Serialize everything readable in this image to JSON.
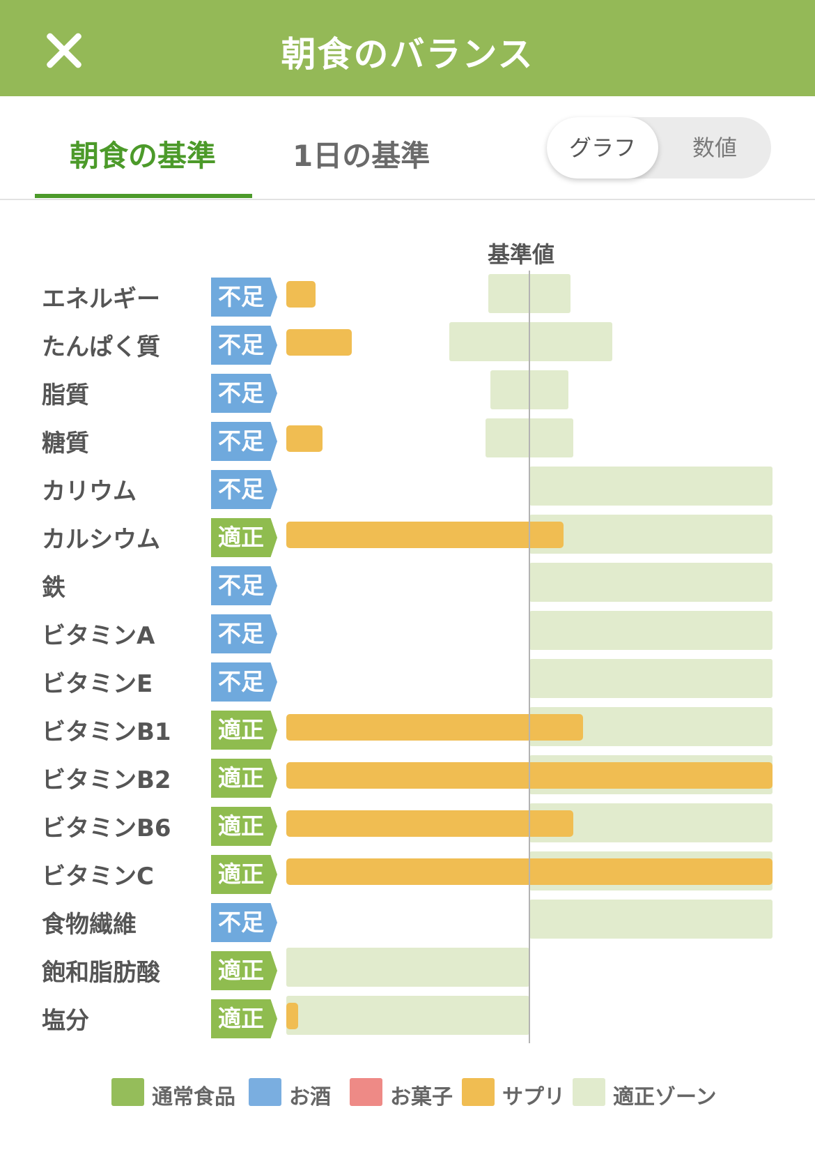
{
  "header": {
    "title": "朝食のバランス",
    "close_icon": "close-icon"
  },
  "tabs": [
    {
      "label": "朝食の基準",
      "active": true
    },
    {
      "label": "1日の基準",
      "active": false
    }
  ],
  "view_toggle": {
    "options": [
      "グラフ",
      "数値"
    ],
    "selected": "グラフ"
  },
  "chart_data": {
    "type": "bar",
    "reference_label": "基準値",
    "orientation": "horizontal",
    "colors": {
      "supplement": "#f0bd52",
      "zone": "#e1ebcd",
      "low_badge": "#6fa9dd",
      "ok_badge": "#8fbc4f"
    },
    "rows": [
      {
        "label": "エネルギー",
        "status": "不足",
        "value": 0.12,
        "zone": [
          0.83,
          1.17
        ]
      },
      {
        "label": "たんぱく質",
        "status": "不足",
        "value": 0.27,
        "zone": [
          0.67,
          1.34
        ]
      },
      {
        "label": "脂質",
        "status": "不足",
        "value": 0,
        "zone": [
          0.84,
          1.16
        ]
      },
      {
        "label": "糖質",
        "status": "不足",
        "value": 0.15,
        "zone": [
          0.82,
          1.18
        ]
      },
      {
        "label": "カリウム",
        "status": "不足",
        "value": 0,
        "zone": [
          1.0,
          2.0
        ]
      },
      {
        "label": "カルシウム",
        "status": "適正",
        "value": 1.14,
        "zone": [
          1.0,
          2.0
        ]
      },
      {
        "label": "鉄",
        "status": "不足",
        "value": 0,
        "zone": [
          1.0,
          2.0
        ]
      },
      {
        "label": "ビタミンA",
        "status": "不足",
        "value": 0,
        "zone": [
          1.0,
          2.0
        ]
      },
      {
        "label": "ビタミンE",
        "status": "不足",
        "value": 0,
        "zone": [
          1.0,
          2.0
        ]
      },
      {
        "label": "ビタミンB1",
        "status": "適正",
        "value": 1.22,
        "zone": [
          1.0,
          2.0
        ]
      },
      {
        "label": "ビタミンB2",
        "status": "適正",
        "value": 2.0,
        "zone": [
          1.0,
          2.0
        ]
      },
      {
        "label": "ビタミンB6",
        "status": "適正",
        "value": 1.18,
        "zone": [
          1.0,
          2.0
        ]
      },
      {
        "label": "ビタミンC",
        "status": "適正",
        "value": 2.0,
        "zone": [
          1.0,
          2.0
        ]
      },
      {
        "label": "食物繊維",
        "status": "不足",
        "value": 0,
        "zone": [
          1.0,
          2.0
        ]
      },
      {
        "label": "飽和脂肪酸",
        "status": "適正",
        "value": 0,
        "zone": [
          0,
          1.0
        ]
      },
      {
        "label": "塩分",
        "status": "適正",
        "value": 0.05,
        "zone": [
          0,
          1.0
        ]
      }
    ]
  },
  "legend": [
    {
      "label": "通常食品",
      "color": "#95bd5a"
    },
    {
      "label": "お酒",
      "color": "#7aaee0"
    },
    {
      "label": "お菓子",
      "color": "#ee8a86"
    },
    {
      "label": "サプリ",
      "color": "#f0bd52"
    },
    {
      "label": "適正ゾーン",
      "color": "#e1ebcd"
    }
  ]
}
